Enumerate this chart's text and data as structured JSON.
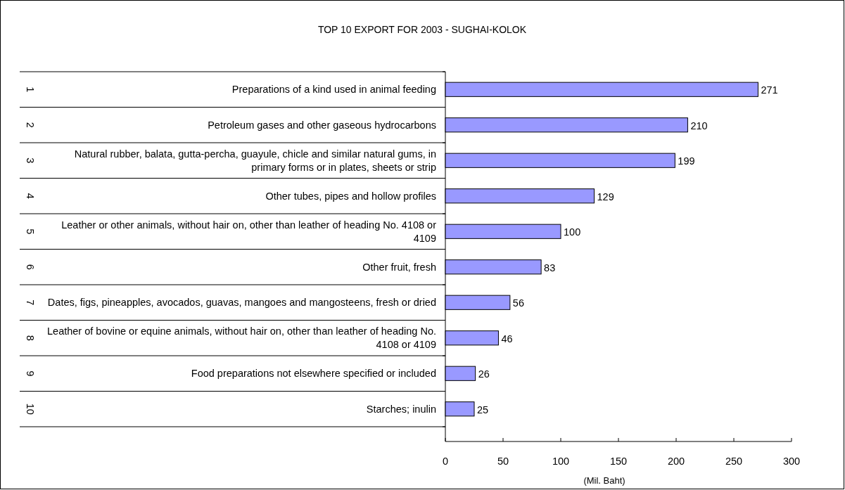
{
  "chart_data": {
    "type": "bar",
    "orientation": "horizontal",
    "title": "TOP 10 EXPORT FOR 2003 -  SUGHAI-KOLOK",
    "xlabel": "(Mil. Baht)",
    "categories": [
      "Preparations of a kind used in animal feeding",
      "Petroleum gases and other gaseous hydrocarbons",
      "Natural rubber, balata, gutta-percha, guayule, chicle and similar natural gums, in primary forms or in plates, sheets or strip",
      "Other tubes, pipes and hollow profiles",
      "Leather or other animals, without hair on, other than leather of heading No. 4108 or 4109",
      "Other fruit, fresh",
      "Dates, figs, pineapples, avocados, guavas, mangoes and mangosteens, fresh or dried",
      "Leather of bovine or equine animals, without hair on, other than leather of heading No. 4108 or 4109",
      "Food preparations not elsewhere specified or included",
      "Starches; inulin"
    ],
    "values": [
      271,
      210,
      199,
      129,
      100,
      83,
      56,
      46,
      26,
      25
    ],
    "color": "#9999ff",
    "xlim": [
      0,
      300
    ],
    "xticks": [
      0,
      50,
      100,
      150,
      200,
      250,
      300
    ],
    "data_labels": true,
    "annotations": [
      "1",
      "2",
      "3",
      "4",
      "5",
      "6",
      "7",
      "8",
      "9",
      "10"
    ]
  }
}
